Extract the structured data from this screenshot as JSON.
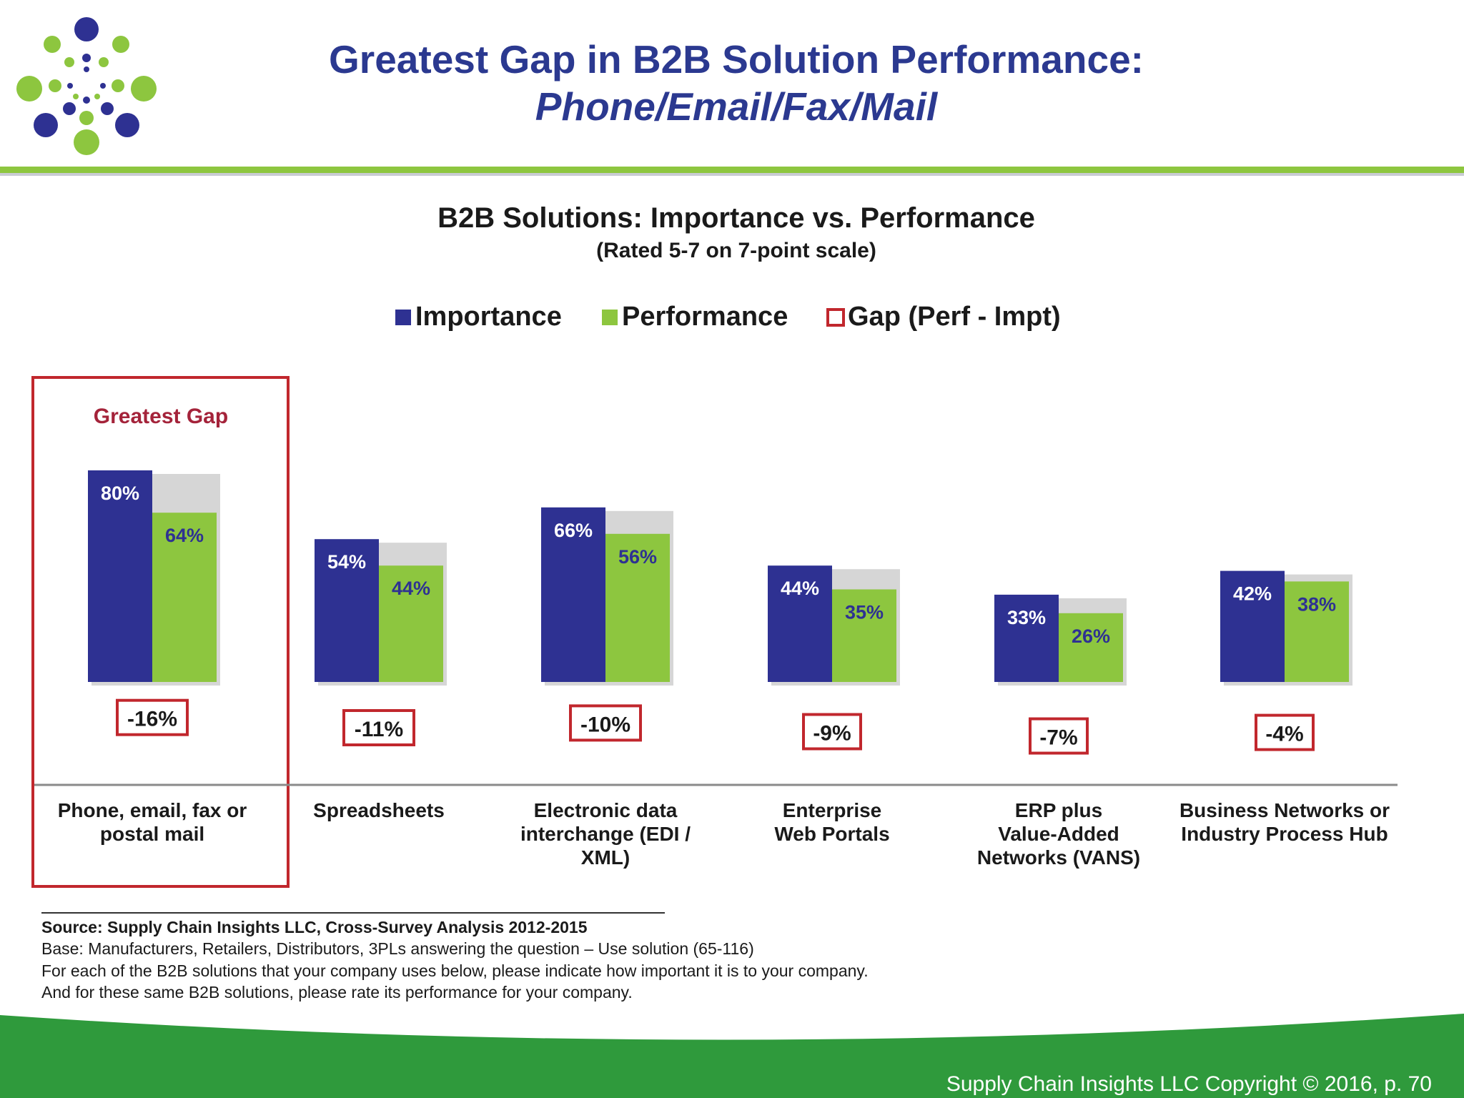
{
  "header": {
    "title_line1": "Greatest Gap in B2B Solution Performance:",
    "title_line2": "Phone/Email/Fax/Mail"
  },
  "colors": {
    "title": "#2b3990",
    "importance": "#2e3192",
    "performance": "#8dc63f",
    "gap_border": "#c1272d",
    "footer": "#2f9a3c"
  },
  "chart_data": {
    "type": "bar",
    "title": "B2B Solutions:  Importance vs. Performance",
    "subtitle": "(Rated 5-7 on 7-point scale)",
    "categories": [
      [
        "Phone, email, fax or",
        "postal mail"
      ],
      [
        "Spreadsheets"
      ],
      [
        "Electronic data",
        "interchange (EDI /",
        "XML)"
      ],
      [
        "Enterprise",
        "Web Portals"
      ],
      [
        "ERP plus",
        "Value-Added",
        "Networks (VANS)"
      ],
      [
        "Business Networks or",
        "Industry Process Hub"
      ]
    ],
    "series": [
      {
        "name": "Importance",
        "values": [
          80,
          54,
          66,
          44,
          33,
          42
        ],
        "labels": [
          "80%",
          "54%",
          "66%",
          "44%",
          "33%",
          "42%"
        ]
      },
      {
        "name": "Performance",
        "values": [
          64,
          44,
          56,
          35,
          26,
          38
        ],
        "labels": [
          "64%",
          "44%",
          "56%",
          "35%",
          "26%",
          "38%"
        ]
      },
      {
        "name": "Gap (Perf - Impt)",
        "values": [
          -16,
          -11,
          -10,
          -9,
          -7,
          -4
        ],
        "labels": [
          "-16%",
          "-11%",
          "-10%",
          "-9%",
          "-7%",
          "-4%"
        ]
      }
    ],
    "ylim": [
      0,
      100
    ],
    "grid": false,
    "legend_placement": "top-center",
    "highlight": {
      "category_index": 0,
      "label": "Greatest Gap"
    }
  },
  "source": {
    "source_line": "Source:  Supply Chain Insights LLC, Cross-Survey Analysis 2012-2015",
    "base_line": "Base:  Manufacturers, Retailers, Distributors, 3PLs answering the question – Use solution (65-116)",
    "question_line": "For each of the B2B solutions that your company uses below, please indicate how important it is to your company.",
    "question_line2": "And for these same B2B solutions, please rate its performance for your company."
  },
  "footer": {
    "copyright": "Supply Chain Insights LLC Copyright © 2016, p. 70"
  }
}
